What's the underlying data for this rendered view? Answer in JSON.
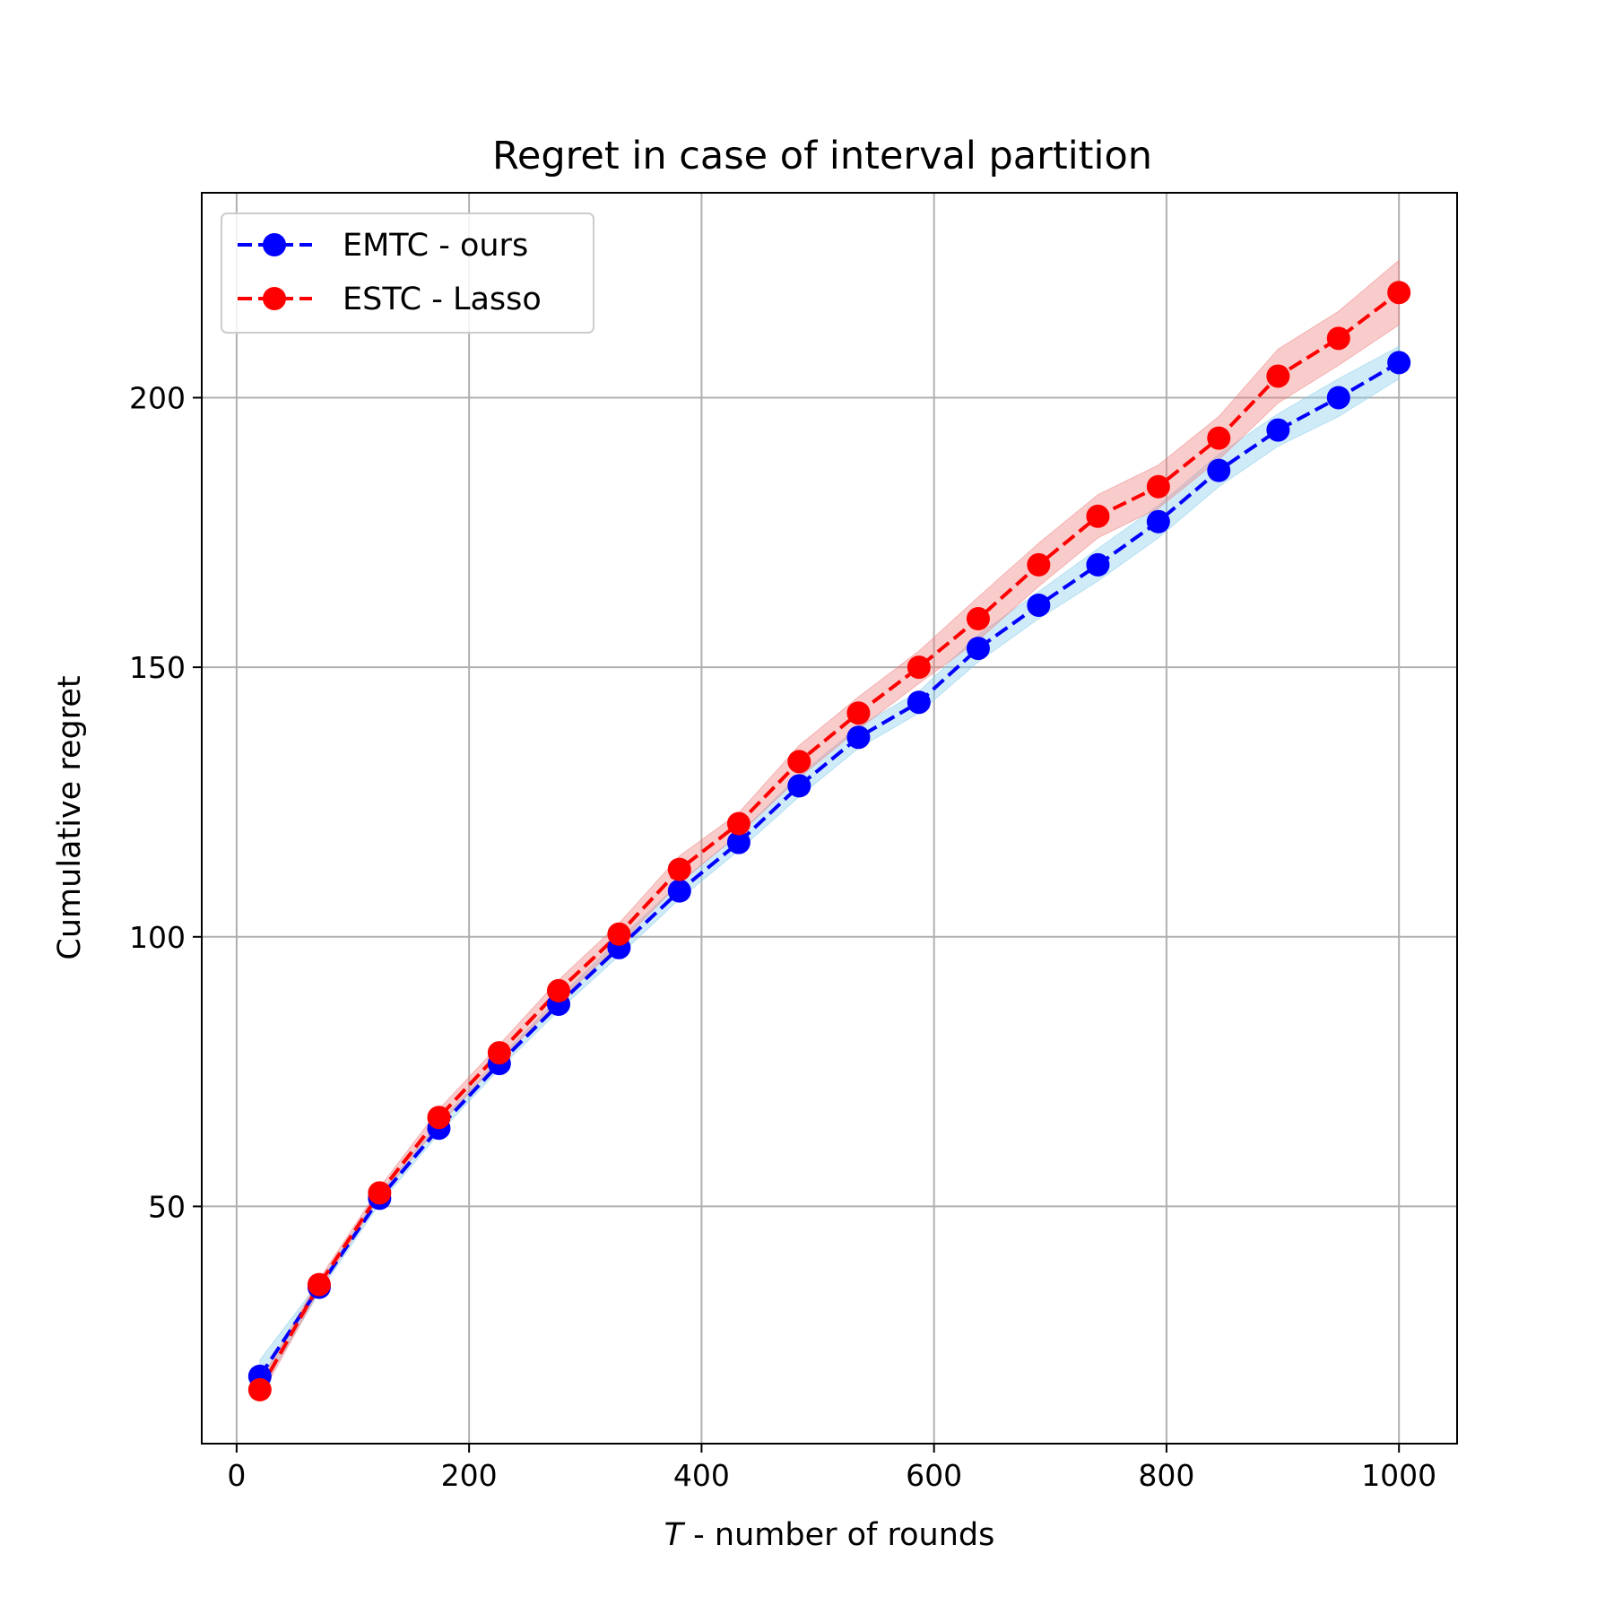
{
  "chart_data": {
    "type": "line",
    "title": "Regret in case of interval partition",
    "xlabel_var": "T",
    "xlabel_rest": " - number of rounds",
    "ylabel": "Cumulative regret",
    "xlim": [
      -30,
      1050
    ],
    "ylim": [
      6,
      238
    ],
    "xticks": [
      0,
      200,
      400,
      600,
      800,
      1000
    ],
    "yticks": [
      50,
      100,
      150,
      200
    ],
    "grid": true,
    "legend_position": "upper-left",
    "x": [
      20,
      71,
      123,
      174,
      226,
      277,
      329,
      381,
      432,
      484,
      535,
      587,
      638,
      690,
      741,
      793,
      845,
      896,
      948,
      1000
    ],
    "series": [
      {
        "name": "EMTC - ours",
        "color": "#0000ff",
        "band_color": "#87ceeb",
        "values": [
          18.5,
          35.0,
          51.5,
          64.5,
          76.5,
          87.5,
          98.0,
          108.5,
          117.5,
          128.0,
          137.0,
          143.5,
          153.5,
          161.5,
          169.0,
          177.0,
          186.5,
          194.0,
          200.0,
          206.5
        ],
        "band_half_width": [
          3.0,
          1.0,
          1.0,
          1.0,
          1.0,
          1.2,
          1.5,
          1.5,
          1.5,
          2.0,
          2.0,
          2.0,
          2.5,
          2.5,
          3.0,
          3.0,
          3.0,
          3.0,
          3.5,
          3.0
        ]
      },
      {
        "name": "ESTC - Lasso",
        "color": "#ff0000",
        "band_color": "#f08080",
        "values": [
          16.0,
          35.5,
          52.5,
          66.5,
          78.5,
          90.0,
          100.5,
          112.5,
          121.0,
          132.5,
          141.5,
          150.0,
          159.0,
          169.0,
          178.0,
          183.5,
          192.5,
          204.0,
          211.0,
          219.5
        ],
        "band_half_width": [
          1.5,
          1.0,
          1.0,
          1.5,
          1.5,
          2.0,
          2.0,
          2.5,
          2.0,
          3.0,
          3.0,
          3.0,
          4.0,
          4.0,
          4.0,
          4.0,
          4.0,
          5.0,
          5.0,
          6.0
        ]
      }
    ]
  }
}
